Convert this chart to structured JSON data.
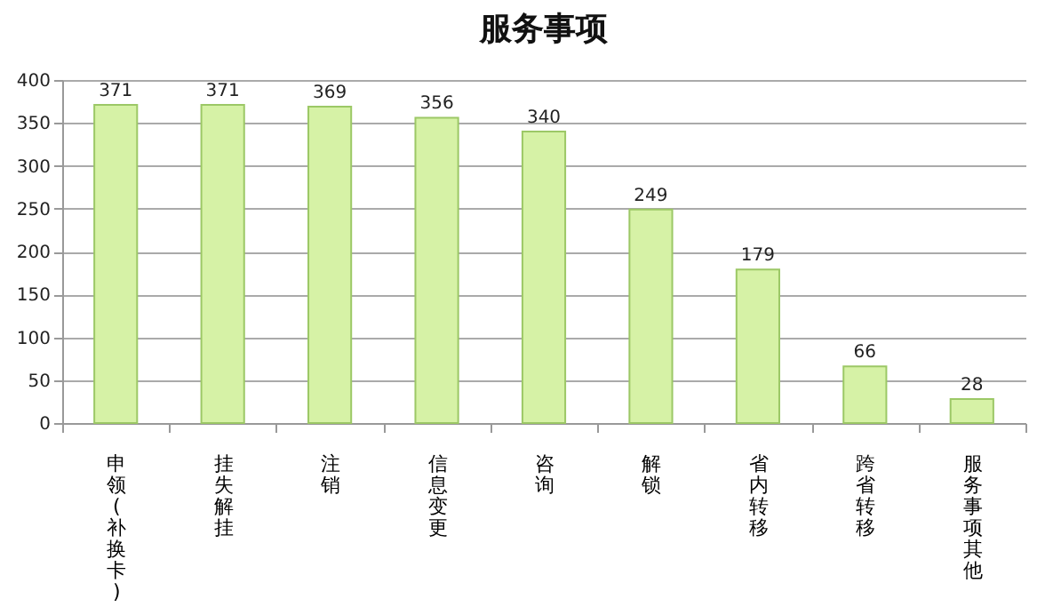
{
  "chart_data": {
    "type": "bar",
    "title": "服务事项",
    "categories": [
      "申领(补换卡)",
      "挂失解挂",
      "注销",
      "信息变更",
      "咨询",
      "解锁",
      "省内转移",
      "跨省转移",
      "服务事项其他"
    ],
    "values": [
      371,
      371,
      369,
      356,
      340,
      249,
      179,
      66,
      28
    ],
    "color": "#d6f2a6",
    "ylim": [
      0,
      400
    ],
    "yticks": [
      0,
      50,
      100,
      150,
      200,
      250,
      300,
      350,
      400
    ],
    "grid": "y",
    "data_labels": true
  }
}
